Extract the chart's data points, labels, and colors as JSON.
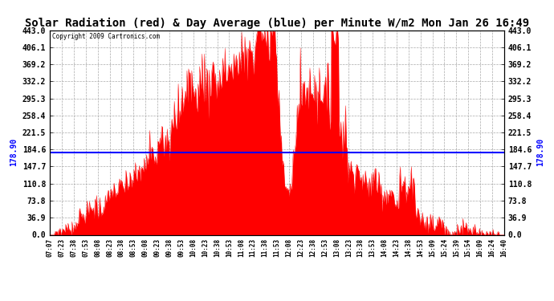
{
  "title": "Solar Radiation (red) & Day Average (blue) per Minute W/m2 Mon Jan 26 16:49",
  "copyright": "Copyright 2009 Cartronics.com",
  "ymin": 0.0,
  "ymax": 443.0,
  "yticks": [
    0.0,
    36.9,
    73.8,
    110.8,
    147.7,
    184.6,
    221.5,
    258.4,
    295.3,
    332.2,
    369.2,
    406.1,
    443.0
  ],
  "day_average": 178.9,
  "fill_color": "#FF0000",
  "avg_line_color": "#0000FF",
  "avg_label": "178.90",
  "background_color": "#FFFFFF",
  "plot_bg_color": "#FFFFFF",
  "grid_color": "#AAAAAA",
  "title_fontsize": 11,
  "xtick_labels": [
    "07:07",
    "07:23",
    "07:38",
    "07:53",
    "08:08",
    "08:23",
    "08:38",
    "08:53",
    "09:08",
    "09:23",
    "09:38",
    "09:53",
    "10:08",
    "10:23",
    "10:38",
    "10:53",
    "11:08",
    "11:23",
    "11:38",
    "11:53",
    "12:08",
    "12:23",
    "12:38",
    "12:53",
    "13:08",
    "13:23",
    "13:38",
    "13:53",
    "14:08",
    "14:23",
    "14:38",
    "14:53",
    "15:09",
    "15:24",
    "15:39",
    "15:54",
    "16:09",
    "16:24",
    "16:40"
  ]
}
